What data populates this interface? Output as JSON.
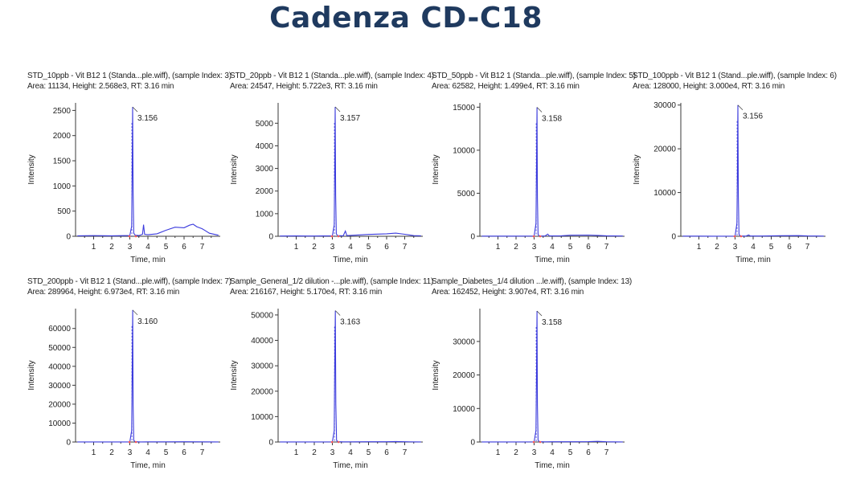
{
  "page_title": "Cadenza CD-C18",
  "colors": {
    "trace": "#3b3bdd",
    "axis": "#3a3a3a",
    "title": "#1f3a5f",
    "rt_marker": "#ff5a5a"
  },
  "chart_data": [
    {
      "type": "line",
      "header1": "STD_10ppb - Vit B12 1 (Standa...ple.wiff), (sample Index: 3)",
      "header2": "Area: 11134, Height: 2.568e3, RT: 3.16 min",
      "xlabel": "Time, min",
      "ylabel": "Intensity",
      "xlim": [
        0,
        8
      ],
      "ylim": [
        0,
        2650
      ],
      "xticks": [
        1,
        2,
        3,
        4,
        5,
        6,
        7
      ],
      "yticks": [
        0,
        500,
        1000,
        1500,
        2000,
        2500
      ],
      "peak_label": "3.156",
      "series": [
        {
          "x": [
            0.1,
            1,
            2,
            3,
            3.1,
            3.13,
            3.156,
            3.18,
            3.22,
            3.3,
            3.5,
            3.7,
            3.76,
            3.82,
            4,
            4.5,
            5,
            5.5,
            6,
            6.3,
            6.5,
            6.7,
            7,
            7.4,
            7.9
          ],
          "y": [
            10,
            12,
            10,
            15,
            200,
            1300,
            2568,
            900,
            60,
            20,
            15,
            40,
            230,
            40,
            30,
            50,
            120,
            180,
            170,
            220,
            240,
            190,
            150,
            60,
            20
          ]
        }
      ]
    },
    {
      "type": "line",
      "header1": "STD_20ppb - Vit B12 1 (Standa...ple.wiff), (sample Index: 4)",
      "header2": "Area: 24547, Height: 5.722e3, RT: 3.16 min",
      "xlabel": "Time, min",
      "ylabel": "Intensity",
      "xlim": [
        0,
        8
      ],
      "ylim": [
        0,
        5900
      ],
      "xticks": [
        1,
        2,
        3,
        4,
        5,
        6,
        7
      ],
      "yticks": [
        0,
        1000,
        2000,
        3000,
        4000,
        5000
      ],
      "peak_label": "3.157",
      "series": [
        {
          "x": [
            0.1,
            1,
            2,
            3,
            3.1,
            3.13,
            3.157,
            3.18,
            3.22,
            3.3,
            3.6,
            3.72,
            3.8,
            4,
            5,
            6,
            6.5,
            7,
            7.5,
            7.9
          ],
          "y": [
            10,
            15,
            12,
            20,
            500,
            2900,
            5722,
            1800,
            100,
            30,
            20,
            230,
            30,
            40,
            80,
            110,
            140,
            90,
            30,
            20
          ]
        }
      ]
    },
    {
      "type": "line",
      "header1": "STD_50ppb - Vit B12 1 (Standa...ple.wiff), (sample Index: 5)",
      "header2": "Area: 62582, Height: 1.499e4, RT: 3.16 min",
      "xlabel": "Time, min",
      "ylabel": "Intensity",
      "xlim": [
        0,
        8
      ],
      "ylim": [
        0,
        15500
      ],
      "xticks": [
        1,
        2,
        3,
        4,
        5,
        6,
        7
      ],
      "yticks": [
        0,
        5000,
        10000,
        15000
      ],
      "peak_label": "3.158",
      "series": [
        {
          "x": [
            0.1,
            1,
            2,
            3,
            3.1,
            3.13,
            3.158,
            3.18,
            3.22,
            3.3,
            3.6,
            3.75,
            3.85,
            4.5,
            5,
            6,
            6.5,
            7,
            7.9
          ],
          "y": [
            20,
            20,
            15,
            30,
            1500,
            7000,
            14990,
            4500,
            200,
            50,
            30,
            250,
            40,
            60,
            120,
            140,
            100,
            60,
            30
          ]
        }
      ]
    },
    {
      "type": "line",
      "header1": "STD_100ppb - Vit B12 1 (Stand...ple.wiff), (sample Index: 6)",
      "header2": "Area: 128000, Height: 3.000e4, RT: 3.16 min",
      "xlabel": "Time, min",
      "ylabel": "Intensity",
      "xlim": [
        0,
        8
      ],
      "ylim": [
        0,
        30500
      ],
      "xticks": [
        1,
        2,
        3,
        4,
        5,
        6,
        7
      ],
      "yticks": [
        0,
        10000,
        20000,
        30000
      ],
      "peak_label": "3.156",
      "series": [
        {
          "x": [
            0.1,
            1,
            2,
            3,
            3.1,
            3.13,
            3.156,
            3.18,
            3.22,
            3.3,
            3.6,
            3.75,
            3.85,
            4.5,
            5.5,
            6.5,
            7,
            7.9
          ],
          "y": [
            30,
            30,
            20,
            40,
            3000,
            14000,
            30000,
            9000,
            400,
            80,
            40,
            300,
            50,
            60,
            120,
            150,
            80,
            40
          ]
        }
      ]
    },
    {
      "type": "line",
      "header1": "STD_200ppb - Vit B12 1 (Stand...ple.wiff), (sample Index: 7)",
      "header2": "Area: 289964, Height: 6.973e4, RT: 3.16 min",
      "xlabel": "Time, min",
      "ylabel": "Intensity",
      "xlim": [
        0,
        8
      ],
      "ylim": [
        0,
        70500
      ],
      "xticks": [
        1,
        2,
        3,
        4,
        5,
        6,
        7
      ],
      "yticks": [
        0,
        10000,
        20000,
        30000,
        40000,
        50000,
        60000
      ],
      "peak_label": "3.160",
      "series": [
        {
          "x": [
            0.1,
            1,
            2,
            3,
            3.1,
            3.13,
            3.16,
            3.18,
            3.22,
            3.3,
            3.6,
            4,
            5,
            6,
            7,
            7.9
          ],
          "y": [
            50,
            40,
            30,
            60,
            6000,
            35000,
            69730,
            20000,
            900,
            150,
            60,
            80,
            100,
            120,
            80,
            50
          ]
        }
      ]
    },
    {
      "type": "line",
      "header1": "Sample_General_1/2 dilution -...ple.wiff), (sample Index: 11)",
      "header2": "Area: 216167, Height: 5.170e4, RT: 3.16 min",
      "xlabel": "Time, min",
      "ylabel": "Intensity",
      "xlim": [
        0,
        8
      ],
      "ylim": [
        0,
        52500
      ],
      "xticks": [
        1,
        2,
        3,
        4,
        5,
        6,
        7
      ],
      "yticks": [
        0,
        10000,
        20000,
        30000,
        40000,
        50000
      ],
      "peak_label": "3.163",
      "series": [
        {
          "x": [
            0.1,
            1,
            2,
            3,
            3.1,
            3.13,
            3.163,
            3.19,
            3.23,
            3.3,
            3.6,
            4,
            5,
            6,
            6.5,
            7,
            7.9
          ],
          "y": [
            40,
            40,
            30,
            50,
            4500,
            28000,
            51700,
            15000,
            700,
            120,
            50,
            70,
            90,
            100,
            200,
            80,
            40
          ]
        }
      ]
    },
    {
      "type": "line",
      "header1": "Sample_Diabetes_1/4 dilution ...le.wiff), (sample Index: 13)",
      "header2": "Area: 162452, Height: 3.907e4, RT: 3.16 min",
      "xlabel": "Time, min",
      "ylabel": "Intensity",
      "xlim": [
        0,
        8
      ],
      "ylim": [
        0,
        39800
      ],
      "xticks": [
        1,
        2,
        3,
        4,
        5,
        6,
        7
      ],
      "yticks": [
        0,
        10000,
        20000,
        30000
      ],
      "peak_label": "3.158",
      "series": [
        {
          "x": [
            0.1,
            1,
            2,
            3,
            3.1,
            3.13,
            3.158,
            3.18,
            3.22,
            3.3,
            3.6,
            4,
            5,
            6,
            6.5,
            7,
            7.9
          ],
          "y": [
            30,
            30,
            20,
            40,
            3500,
            18000,
            39070,
            11000,
            500,
            90,
            40,
            60,
            80,
            90,
            180,
            70,
            30
          ]
        }
      ]
    }
  ]
}
